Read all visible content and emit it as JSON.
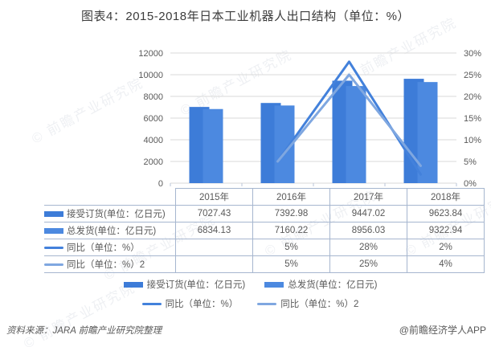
{
  "title": "图表4：2015-2018年日本工业机器人出口结构（单位：%）",
  "watermark": {
    "text": "© 前瞻产业研究院"
  },
  "chart_data": {
    "type": "combo-bar-line",
    "categories": [
      "2015年",
      "2016年",
      "2017年",
      "2018年"
    ],
    "bar_series": [
      {
        "name": "接受订货(单位：亿日元)",
        "values": [
          7027.43,
          7392.98,
          9447.02,
          9623.84
        ],
        "color": "#3D7CD8"
      },
      {
        "name": "总发货(单位：亿日元)",
        "values": [
          6834.13,
          7160.22,
          8956.03,
          9322.94
        ],
        "color": "#4C89E0"
      }
    ],
    "line_series": [
      {
        "name": "同比（单位：%）",
        "values": [
          null,
          5,
          28,
          2
        ],
        "color": "#4381DB"
      },
      {
        "name": "同比（单位：%）2",
        "values": [
          null,
          5,
          25,
          4
        ],
        "color": "#7FA7E0"
      }
    ],
    "left_axis": {
      "min": 0,
      "max": 12000,
      "step": 2000,
      "ticks": [
        "0",
        "2000",
        "4000",
        "6000",
        "8000",
        "10000",
        "12000"
      ]
    },
    "right_axis": {
      "min": 0,
      "max": 30,
      "step": 5,
      "suffix": "%",
      "ticks": [
        "0%",
        "5%",
        "10%",
        "15%",
        "20%",
        "25%",
        "30%"
      ]
    },
    "grid": true,
    "legend_position": "bottom"
  },
  "table": {
    "header": [
      "2015年",
      "2016年",
      "2017年",
      "2018年"
    ],
    "rows": [
      {
        "label": "接受订货(单位：亿日元)",
        "marker": "bar",
        "series": 0,
        "values": [
          "7027.43",
          "7392.98",
          "9447.02",
          "9623.84"
        ]
      },
      {
        "label": "总发货(单位：亿日元)",
        "marker": "bar",
        "series": 1,
        "values": [
          "6834.13",
          "7160.22",
          "8956.03",
          "9322.94"
        ]
      },
      {
        "label": "同比（单位：%）",
        "marker": "line",
        "series": 0,
        "values": [
          "",
          "5%",
          "28%",
          "2%"
        ]
      },
      {
        "label": "同比（单位：%）2",
        "marker": "line",
        "series": 1,
        "values": [
          "",
          "5%",
          "25%",
          "4%"
        ]
      }
    ]
  },
  "footer": {
    "source": "资料来源：JARA 前瞻产业研究院整理",
    "credit": "@前瞻经济学人APP"
  }
}
